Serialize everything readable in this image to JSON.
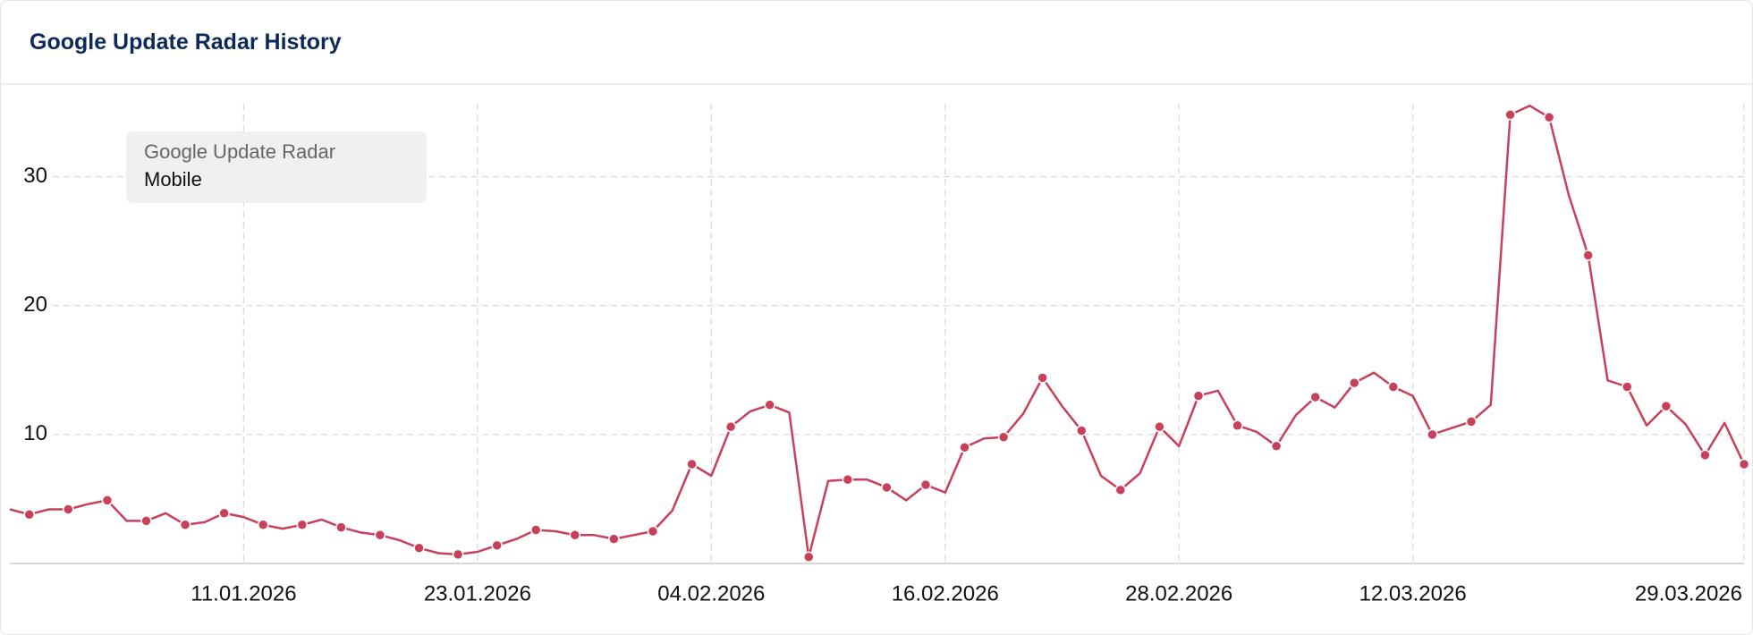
{
  "header": {
    "title": "Google Update Radar History"
  },
  "chart_data": {
    "type": "line",
    "legend_title": "Google Update Radar",
    "x": [
      "30.12.2025",
      "31.12.2025",
      "01.01.2026",
      "02.01.2026",
      "03.01.2026",
      "04.01.2026",
      "05.01.2026",
      "06.01.2026",
      "07.01.2026",
      "08.01.2026",
      "09.01.2026",
      "10.01.2026",
      "11.01.2026",
      "12.01.2026",
      "13.01.2026",
      "14.01.2026",
      "15.01.2026",
      "16.01.2026",
      "17.01.2026",
      "18.01.2026",
      "19.01.2026",
      "20.01.2026",
      "21.01.2026",
      "22.01.2026",
      "23.01.2026",
      "24.01.2026",
      "25.01.2026",
      "26.01.2026",
      "27.01.2026",
      "28.01.2026",
      "29.01.2026",
      "30.01.2026",
      "31.01.2026",
      "01.02.2026",
      "02.02.2026",
      "03.02.2026",
      "04.02.2026",
      "05.02.2026",
      "06.02.2026",
      "07.02.2026",
      "08.02.2026",
      "09.02.2026",
      "10.02.2026",
      "11.02.2026",
      "12.02.2026",
      "13.02.2026",
      "14.02.2026",
      "15.02.2026",
      "16.02.2026",
      "17.02.2026",
      "18.02.2026",
      "19.02.2026",
      "20.02.2026",
      "21.02.2026",
      "22.02.2026",
      "23.02.2026",
      "24.02.2026",
      "25.02.2026",
      "26.02.2026",
      "27.02.2026",
      "28.02.2026",
      "01.03.2026",
      "02.03.2026",
      "03.03.2026",
      "04.03.2026",
      "05.03.2026",
      "06.03.2026",
      "07.03.2026",
      "08.03.2026",
      "09.03.2026",
      "10.03.2026",
      "11.03.2026",
      "12.03.2026",
      "13.03.2026",
      "14.03.2026",
      "15.03.2026",
      "16.03.2026",
      "17.03.2026",
      "18.03.2026",
      "19.03.2026",
      "20.03.2026",
      "21.03.2026",
      "22.03.2026",
      "23.03.2026",
      "24.03.2026",
      "25.03.2026",
      "26.03.2026",
      "27.03.2026",
      "28.03.2026",
      "29.03.2026"
    ],
    "series": [
      {
        "name": "Mobile",
        "color": "#c8405a",
        "values": [
          4.2,
          3.8,
          4.2,
          4.2,
          4.6,
          4.9,
          3.3,
          3.3,
          3.9,
          3.0,
          3.2,
          3.9,
          3.6,
          3.0,
          2.7,
          3.0,
          3.4,
          2.8,
          2.4,
          2.2,
          1.8,
          1.2,
          0.8,
          0.7,
          0.9,
          1.4,
          1.9,
          2.6,
          2.5,
          2.2,
          2.2,
          1.9,
          2.2,
          2.5,
          4.1,
          7.7,
          6.8,
          10.6,
          11.8,
          12.3,
          11.7,
          0.5,
          6.4,
          6.5,
          6.5,
          5.9,
          4.9,
          6.1,
          5.5,
          9.0,
          9.7,
          9.8,
          11.6,
          14.4,
          12.2,
          10.3,
          6.8,
          5.7,
          7.0,
          10.6,
          9.1,
          13.0,
          13.4,
          10.7,
          10.2,
          9.1,
          11.5,
          12.9,
          12.1,
          14.0,
          14.8,
          13.7,
          13.0,
          10.0,
          10.5,
          11.0,
          12.3,
          34.8,
          35.5,
          34.6,
          28.6,
          23.9,
          14.2,
          13.7,
          10.7,
          12.2,
          10.8,
          8.4,
          10.9,
          7.7
        ]
      }
    ],
    "xticks": [
      "11.01.2026",
      "23.01.2026",
      "04.02.2026",
      "16.02.2026",
      "28.02.2026",
      "12.03.2026",
      "29.03.2026"
    ],
    "ylim": [
      0,
      36
    ],
    "yticks": [
      10,
      20,
      30
    ],
    "grid": true
  }
}
